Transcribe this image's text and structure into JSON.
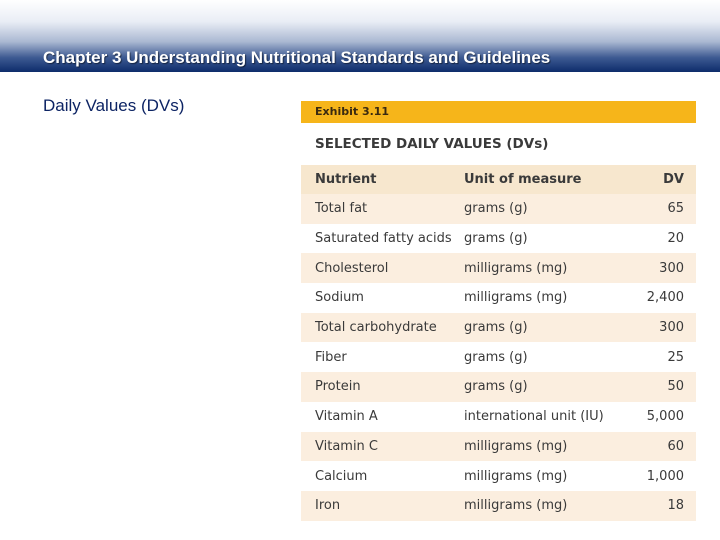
{
  "header": {
    "title": "Chapter 3 Understanding Nutritional Standards and Guidelines"
  },
  "slide": {
    "subtitle": "Daily Values (DVs)"
  },
  "exhibit": {
    "label": "Exhibit 3.11",
    "title": "SELECTED DAILY VALUES (DVs)",
    "columns": [
      "Nutrient",
      "Unit of measure",
      "DV"
    ],
    "rows": [
      {
        "nutrient": "Total fat",
        "unit": "grams (g)",
        "dv": "65"
      },
      {
        "nutrient": "Saturated fatty acids",
        "unit": "grams (g)",
        "dv": "20"
      },
      {
        "nutrient": "Cholesterol",
        "unit": "milligrams (mg)",
        "dv": "300"
      },
      {
        "nutrient": "Sodium",
        "unit": "milligrams (mg)",
        "dv": "2,400"
      },
      {
        "nutrient": "Total carbohydrate",
        "unit": "grams (g)",
        "dv": "300"
      },
      {
        "nutrient": "Fiber",
        "unit": "grams (g)",
        "dv": "25"
      },
      {
        "nutrient": "Protein",
        "unit": "grams (g)",
        "dv": "50"
      },
      {
        "nutrient": "Vitamin A",
        "unit": "international unit (IU)",
        "dv": "5,000"
      },
      {
        "nutrient": "Vitamin C",
        "unit": "milligrams (mg)",
        "dv": "60"
      },
      {
        "nutrient": "Calcium",
        "unit": "milligrams (mg)",
        "dv": "1,000"
      },
      {
        "nutrient": "Iron",
        "unit": "milligrams (mg)",
        "dv": "18"
      }
    ],
    "colors": {
      "label_bar": "#f6b51a",
      "header_row": "#f7e7ce",
      "stripe": "#fbeedf"
    }
  }
}
